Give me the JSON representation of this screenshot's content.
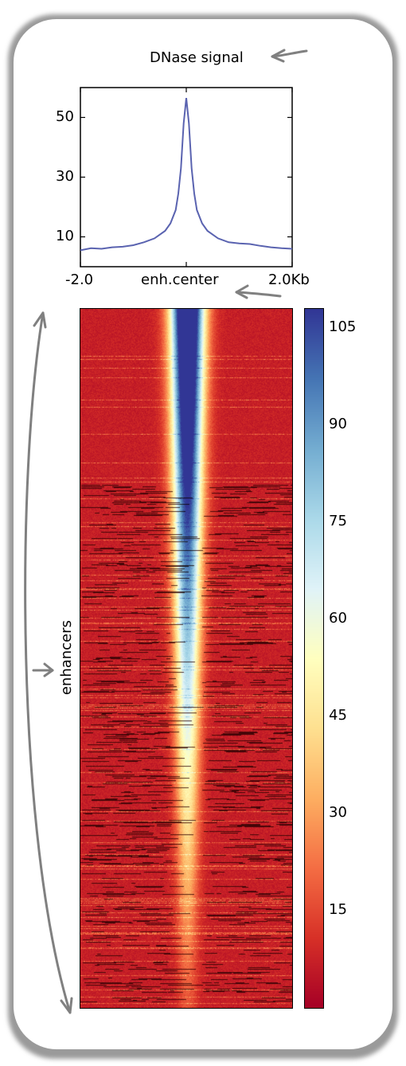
{
  "chart_data": [
    {
      "type": "line",
      "title": "DNase signal",
      "xlabel": "enh.center",
      "x_tick_labels": [
        "-2.0",
        "enh.center",
        "2.0Kb"
      ],
      "x": [
        -2.0,
        -1.8,
        -1.6,
        -1.4,
        -1.2,
        -1.0,
        -0.8,
        -0.6,
        -0.4,
        -0.3,
        -0.2,
        -0.15,
        -0.1,
        -0.05,
        0.0,
        0.05,
        0.1,
        0.15,
        0.2,
        0.3,
        0.4,
        0.6,
        0.8,
        1.0,
        1.2,
        1.4,
        1.6,
        1.8,
        2.0
      ],
      "values": [
        5.5,
        6.2,
        6.0,
        6.5,
        6.7,
        7.2,
        8.2,
        9.5,
        12.0,
        14.5,
        19.0,
        24.5,
        33.0,
        48.0,
        56.5,
        48.0,
        33.0,
        24.5,
        19.0,
        14.5,
        12.0,
        9.5,
        8.2,
        7.8,
        7.6,
        7.0,
        6.5,
        6.2,
        6.0
      ],
      "yticks": [
        10,
        30,
        50
      ],
      "ylim": [
        0,
        60
      ],
      "xlim": [
        -2.0,
        2.0
      ],
      "line_color": "#5a63b0",
      "grid": false
    },
    {
      "type": "heatmap",
      "ylabel": "enhancers",
      "x_range_kb": [
        -2.0,
        2.0
      ],
      "colorbar_ticks": [
        15,
        30,
        45,
        60,
        75,
        90,
        105
      ],
      "colorbar_range": [
        0,
        108
      ],
      "colormap": "RdYlBu",
      "rows_sorted": "descending signal at enh.center"
    }
  ],
  "colors": {
    "line": "#5a63b0",
    "frame": "#8a8a8a",
    "arrows": "#808080"
  }
}
